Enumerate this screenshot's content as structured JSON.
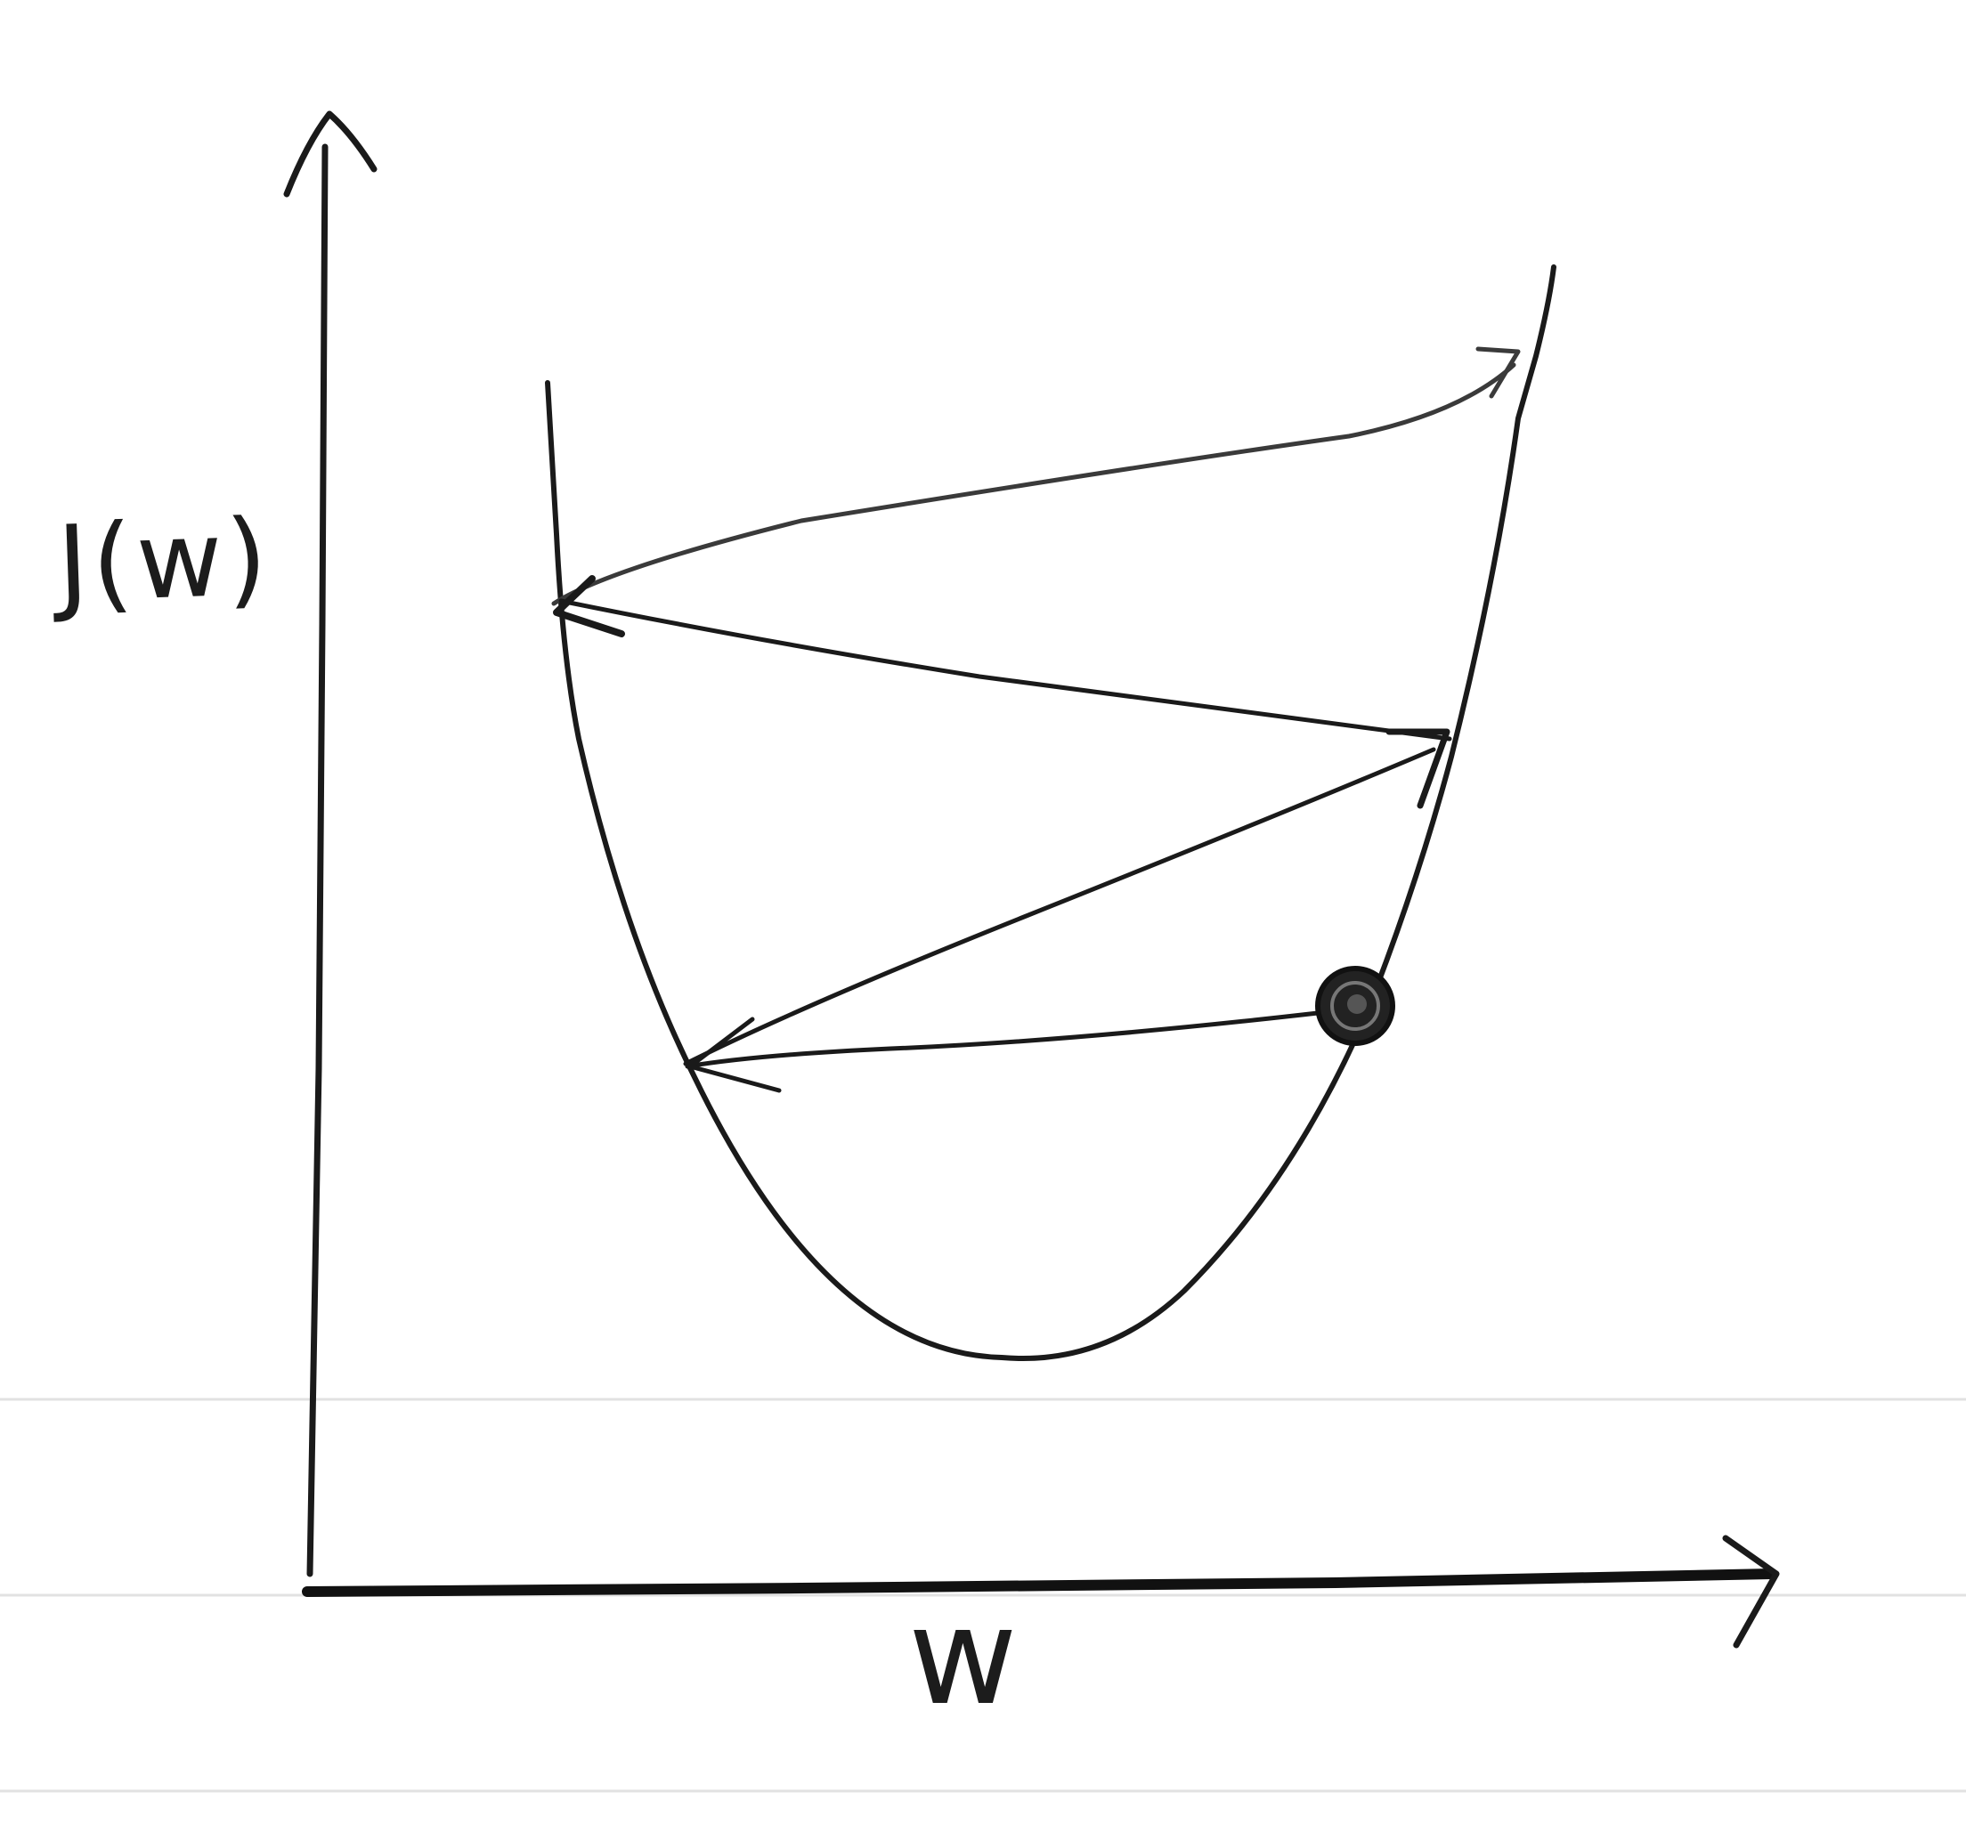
{
  "diagram": {
    "y_axis_label": "J(w)",
    "x_axis_label": "w",
    "curve_shape": "convex-bowl",
    "descent_steps": 4,
    "ink_color": "#1a1a1a",
    "rule_line_color": "#d9d9d9"
  }
}
